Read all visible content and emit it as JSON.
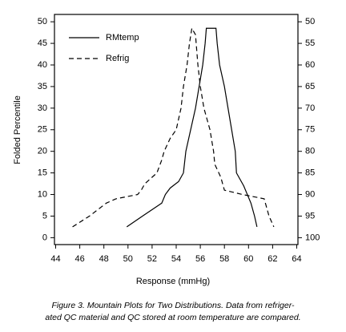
{
  "chart_data": {
    "type": "line",
    "xlabel": "Response (mmHg)",
    "ylabel": "Folded Percentile",
    "xlim": [
      43.9,
      64.1
    ],
    "xticks": [
      44,
      46,
      48,
      50,
      52,
      54,
      56,
      58,
      60,
      62,
      64
    ],
    "ylim": [
      -1.6,
      51.7
    ],
    "yticks": [
      0,
      5,
      10,
      15,
      20,
      25,
      30,
      35,
      40,
      45,
      50
    ],
    "y2lim": [
      101.6,
      48.3
    ],
    "y2ticks": [
      50,
      55,
      60,
      65,
      70,
      75,
      80,
      85,
      90,
      95,
      100
    ],
    "legend": "upper left",
    "grid": false,
    "series": [
      {
        "name": "RMtemp",
        "color": "#000000",
        "dash": "solid",
        "x": [
          49.9,
          51.2,
          52.8,
          53.1,
          53.5,
          54.2,
          54.6,
          54.8,
          55.2,
          55.6,
          55.9,
          56.2,
          56.4,
          56.5,
          57.3,
          57.4,
          57.6,
          58.0,
          58.3,
          58.6,
          58.9,
          59.0,
          59.6,
          60.2,
          60.5,
          60.7
        ],
        "values": [
          2.5,
          5,
          8,
          10,
          11.5,
          13,
          15,
          20,
          25,
          30,
          35,
          40,
          45,
          48.5,
          48.5,
          45,
          40,
          35,
          30,
          25,
          20,
          15,
          12,
          8,
          5,
          2.5
        ]
      },
      {
        "name": "Refrig",
        "color": "#000000",
        "dash": "dashed",
        "x": [
          45.4,
          46.8,
          48.2,
          49.0,
          50.8,
          51.1,
          51.4,
          52.0,
          52.4,
          52.8,
          53.0,
          53.5,
          54.0,
          54.4,
          54.6,
          54.9,
          55.1,
          55.3,
          55.6,
          55.8,
          56.0,
          56.3,
          56.8,
          57.1,
          57.2,
          57.7,
          58.0,
          59.5,
          61.3,
          61.7,
          62.1
        ],
        "values": [
          2.5,
          5,
          8,
          9,
          10,
          11,
          12.5,
          14,
          15,
          18,
          20,
          23,
          25,
          30,
          35,
          40,
          45,
          48.5,
          47,
          40,
          35,
          30,
          25,
          20,
          17,
          14,
          11,
          10,
          9,
          5,
          2.5
        ]
      }
    ],
    "caption_lines": [
      "Figure 3.    Mountain Plots for Two Distributions. Data from refriger-",
      "ated QC material and QC stored at room temperature are compared."
    ]
  }
}
